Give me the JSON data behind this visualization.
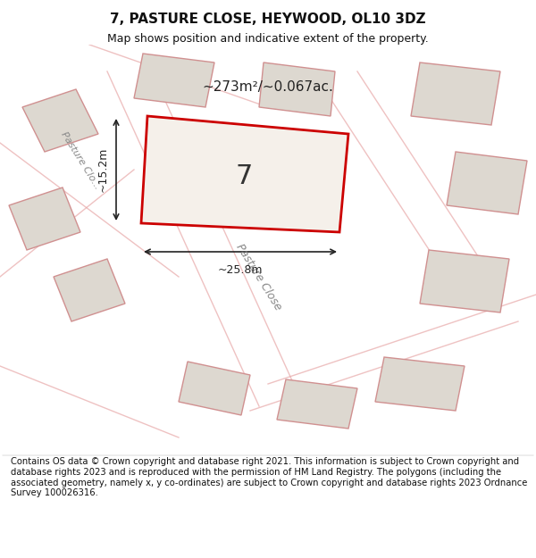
{
  "title": "7, PASTURE CLOSE, HEYWOOD, OL10 3DZ",
  "subtitle": "Map shows position and indicative extent of the property.",
  "footer": "Contains OS data © Crown copyright and database right 2021. This information is subject to Crown copyright and database rights 2023 and is reproduced with the permission of HM Land Registry. The polygons (including the associated geometry, namely x, y co-ordinates) are subject to Crown copyright and database rights 2023 Ordnance Survey 100026316.",
  "area_label": "~273m²/~0.067ac.",
  "plot_number": "7",
  "dim_width": "~25.8m",
  "dim_height": "~15.2m",
  "background_color": "#f5f5f5",
  "map_background": "#f0ede8",
  "highlight_color": "#cc0000",
  "neighbor_color": "#e8e0d8",
  "neighbor_edge_color": "#e8a0a0",
  "road_color": "#e8c8c0",
  "title_fontsize": 11,
  "subtitle_fontsize": 9,
  "footer_fontsize": 7.2
}
